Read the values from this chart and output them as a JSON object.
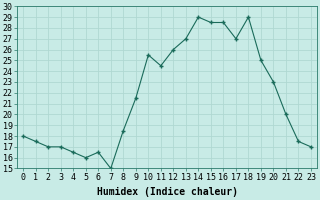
{
  "x": [
    0,
    1,
    2,
    3,
    4,
    5,
    6,
    7,
    8,
    9,
    10,
    11,
    12,
    13,
    14,
    15,
    16,
    17,
    18,
    19,
    20,
    21,
    22,
    23
  ],
  "y": [
    18,
    17.5,
    17,
    17,
    16.5,
    16,
    16.5,
    15,
    18.5,
    21.5,
    25.5,
    24.5,
    26,
    27,
    29,
    28.5,
    28.5,
    27,
    29,
    25,
    23,
    20,
    17.5,
    17
  ],
  "line_color": "#1a6b5a",
  "marker_color": "#1a6b5a",
  "bg_color": "#c8ebe6",
  "grid_color": "#b0d8d2",
  "xlabel": "Humidex (Indice chaleur)",
  "xlim": [
    -0.5,
    23.5
  ],
  "ylim": [
    15,
    30
  ],
  "xtick_labels": [
    "0",
    "1",
    "2",
    "3",
    "4",
    "5",
    "6",
    "7",
    "8",
    "9",
    "10",
    "11",
    "12",
    "13",
    "14",
    "15",
    "16",
    "17",
    "18",
    "19",
    "20",
    "21",
    "22",
    "23"
  ],
  "ytick_vals": [
    15,
    16,
    17,
    18,
    19,
    20,
    21,
    22,
    23,
    24,
    25,
    26,
    27,
    28,
    29,
    30
  ],
  "font_size": 6,
  "xlabel_fontsize": 7
}
